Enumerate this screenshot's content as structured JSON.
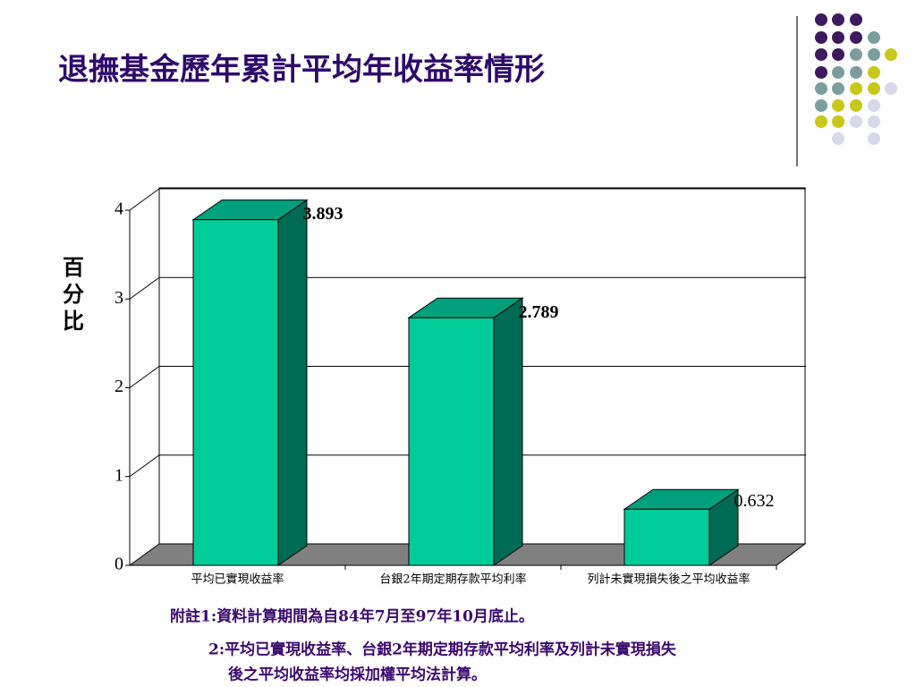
{
  "chart_data": {
    "type": "bar3d",
    "title": "退撫基金歷年累計平均年收益率情形",
    "ylabel": "百分比",
    "categories": [
      "平均已實現收益率",
      "台銀2年期定期存款平均利率",
      "列計未實現損失後之平均收益率"
    ],
    "values": [
      3.893,
      2.789,
      0.632
    ],
    "color": "#00cc99",
    "ylim": [
      0,
      4
    ],
    "yticks": [
      0,
      1,
      2,
      3,
      4
    ],
    "grid": true
  },
  "notes": [
    "附註1:資料計算期間為自84年7月至97年10月底止。",
    "2:平均已實現收益率、台銀2年期定期存款平均利率及列計未實現損失",
    "後之平均收益率均採加權平均法計算。"
  ]
}
